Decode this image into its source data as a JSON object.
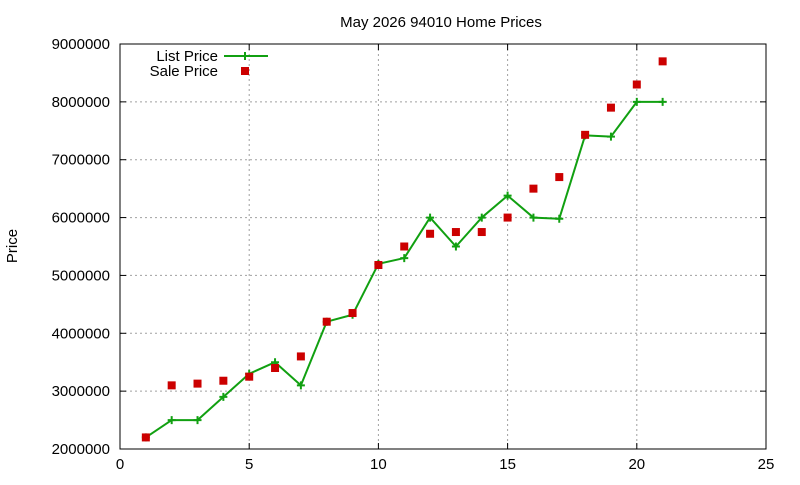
{
  "chart_data": {
    "type": "line",
    "title": "May 2026 94010 Home Prices",
    "xlabel": "",
    "ylabel": "Price",
    "xlim": [
      0,
      25
    ],
    "ylim": [
      2000000,
      9000000
    ],
    "x_ticks": [
      0,
      5,
      10,
      15,
      20,
      25
    ],
    "y_ticks": [
      2000000,
      3000000,
      4000000,
      5000000,
      6000000,
      7000000,
      8000000,
      9000000
    ],
    "grid": true,
    "legend_position": "top-left",
    "series": [
      {
        "name": "List Price",
        "style": "line-plus",
        "color": "#11a011",
        "x": [
          1,
          2,
          3,
          4,
          5,
          6,
          7,
          8,
          9,
          10,
          11,
          12,
          13,
          14,
          15,
          16,
          17,
          18,
          19,
          20,
          21
        ],
        "values": [
          2200000,
          2500000,
          2500000,
          2900000,
          3300000,
          3500000,
          3100000,
          4200000,
          4320000,
          5200000,
          5300000,
          6000000,
          5500000,
          6000000,
          6380000,
          6000000,
          5980000,
          7420000,
          7400000,
          8000000,
          8000000
        ]
      },
      {
        "name": "Sale Price",
        "style": "square",
        "color": "#cc0000",
        "x": [
          1,
          2,
          3,
          4,
          5,
          6,
          7,
          8,
          9,
          10,
          11,
          12,
          13,
          14,
          15,
          16,
          17,
          18,
          19,
          20,
          21
        ],
        "values": [
          2200000,
          3100000,
          3130000,
          3180000,
          3250000,
          3400000,
          3600000,
          4200000,
          4350000,
          5180000,
          5500000,
          5720000,
          5750000,
          5750000,
          6000000,
          6500000,
          6700000,
          7430000,
          7900000,
          8300000,
          8700000
        ]
      }
    ]
  }
}
